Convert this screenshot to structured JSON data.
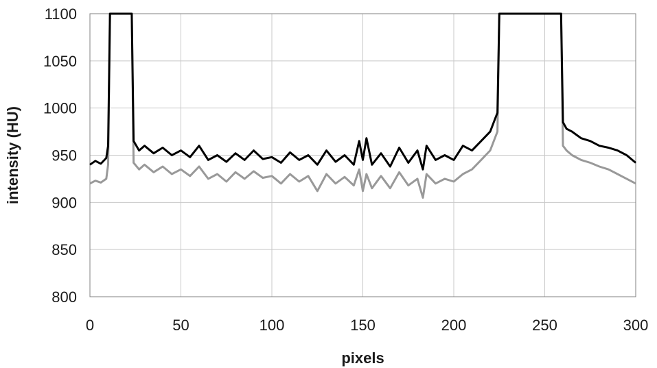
{
  "chart_data": {
    "type": "line",
    "title": "",
    "xlabel": "pixels",
    "ylabel": "intensity (HU)",
    "xlim": [
      0,
      300
    ],
    "ylim": [
      800,
      1100
    ],
    "xticks": [
      "0",
      "50",
      "100",
      "150",
      "200",
      "250",
      "300"
    ],
    "yticks": [
      "800",
      "850",
      "900",
      "950",
      "1000",
      "1050",
      "1100"
    ],
    "grid": true,
    "legend": "none",
    "series": [
      {
        "color": "#000000",
        "x": [
          0,
          3,
          6,
          9,
          10,
          11,
          12,
          22,
          23,
          24,
          27,
          30,
          35,
          40,
          45,
          50,
          55,
          60,
          65,
          70,
          75,
          80,
          85,
          90,
          95,
          100,
          105,
          110,
          115,
          120,
          125,
          130,
          135,
          140,
          145,
          148,
          150,
          152,
          155,
          160,
          165,
          170,
          175,
          180,
          183,
          185,
          190,
          195,
          200,
          205,
          210,
          215,
          220,
          223,
          224,
          225,
          226,
          258,
          259,
          260,
          262,
          265,
          270,
          275,
          280,
          285,
          290,
          295,
          300
        ],
        "y": [
          940,
          944,
          941,
          947,
          960,
          1100,
          1100,
          1100,
          1100,
          965,
          955,
          960,
          952,
          958,
          950,
          955,
          948,
          960,
          945,
          950,
          943,
          952,
          945,
          955,
          946,
          948,
          942,
          953,
          945,
          950,
          940,
          955,
          943,
          950,
          940,
          965,
          945,
          968,
          940,
          952,
          938,
          958,
          942,
          955,
          935,
          960,
          945,
          950,
          945,
          960,
          955,
          965,
          975,
          990,
          995,
          1100,
          1100,
          1100,
          1100,
          985,
          978,
          975,
          968,
          965,
          960,
          958,
          955,
          950,
          942
        ]
      },
      {
        "color": "#999999",
        "x": [
          0,
          3,
          6,
          9,
          10,
          11,
          12,
          22,
          23,
          24,
          27,
          30,
          35,
          40,
          45,
          50,
          55,
          60,
          65,
          70,
          75,
          80,
          85,
          90,
          95,
          100,
          105,
          110,
          115,
          120,
          125,
          130,
          135,
          140,
          145,
          148,
          150,
          152,
          155,
          160,
          165,
          170,
          175,
          180,
          183,
          185,
          190,
          195,
          200,
          205,
          210,
          215,
          220,
          223,
          224,
          225,
          226,
          258,
          259,
          260,
          262,
          265,
          270,
          275,
          280,
          285,
          290,
          295,
          300
        ],
        "y": [
          920,
          923,
          921,
          925,
          940,
          1100,
          1100,
          1100,
          1100,
          942,
          935,
          940,
          932,
          938,
          930,
          935,
          928,
          938,
          925,
          930,
          922,
          932,
          925,
          933,
          926,
          928,
          920,
          930,
          922,
          928,
          912,
          930,
          920,
          927,
          918,
          935,
          912,
          930,
          915,
          928,
          915,
          932,
          918,
          925,
          905,
          930,
          920,
          925,
          922,
          930,
          935,
          945,
          955,
          970,
          975,
          1100,
          1100,
          1100,
          1100,
          960,
          955,
          950,
          945,
          942,
          938,
          935,
          930,
          925,
          920
        ]
      }
    ]
  }
}
